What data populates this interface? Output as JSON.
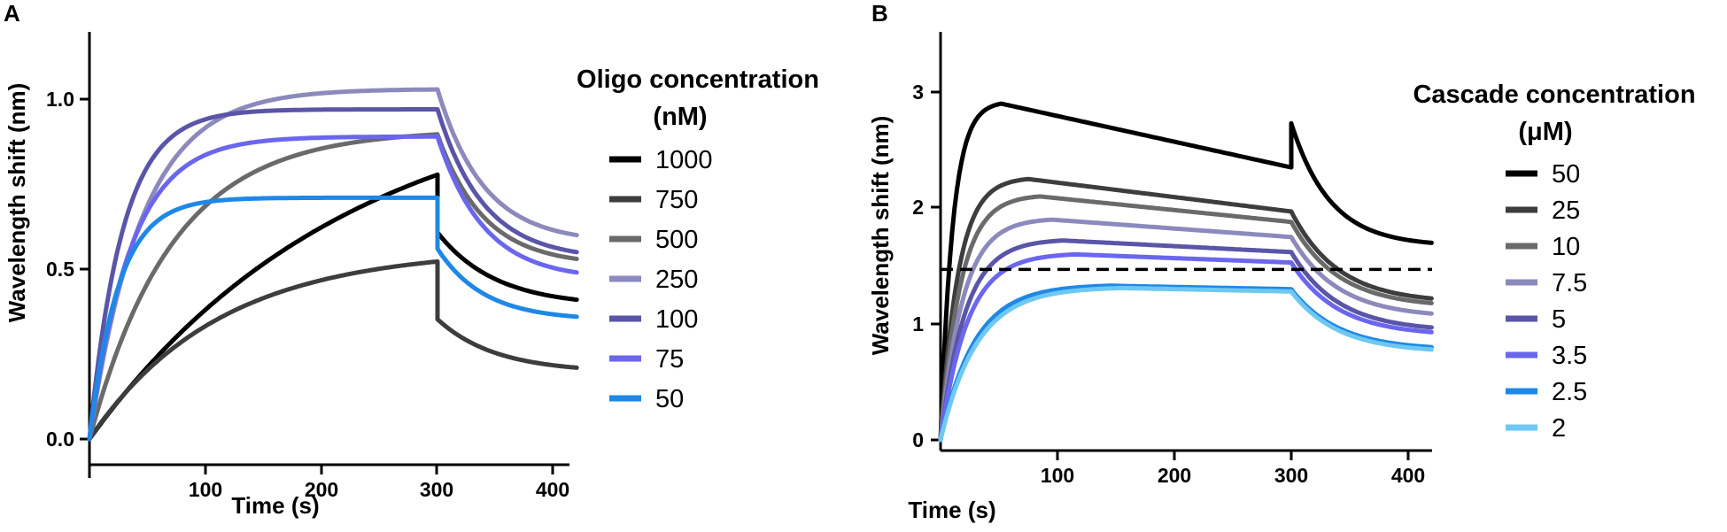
{
  "chart_data": [
    {
      "type": "line",
      "panel_label": "A",
      "xlabel": "Time (s)",
      "ylabel": "Wavelength shift (nm)",
      "xlim": [
        0,
        420
      ],
      "ylim": [
        -0.1,
        1.2
      ],
      "xticks": [
        100,
        200,
        300,
        400
      ],
      "xtick_labels": [
        "100",
        "200",
        "300",
        "400"
      ],
      "yticks": [
        0.0,
        0.5,
        1.0
      ],
      "ytick_labels": [
        "0.0",
        "0.5",
        "1.0"
      ],
      "grid": false,
      "legend_title": [
        "Oligo concentration",
        "(nM)"
      ],
      "legend_position": "right",
      "series": [
        {
          "name": "1000",
          "color": "#000000",
          "assoc_plateau": 1.05,
          "assoc_rate": 0.0045,
          "dissoc_end": 0.41,
          "dissoc_rate": 0.02,
          "dissoc_jump": 0.17
        },
        {
          "name": "750",
          "color": "#3d3d3d",
          "assoc_plateau": 0.56,
          "assoc_rate": 0.009,
          "dissoc_end": 0.21,
          "dissoc_rate": 0.02,
          "dissoc_jump": 0.17
        },
        {
          "name": "500",
          "color": "#6a6a6a",
          "assoc_plateau": 0.91,
          "assoc_rate": 0.014,
          "dissoc_end": 0.53,
          "dissoc_rate": 0.025,
          "dissoc_jump": 0.0
        },
        {
          "name": "250",
          "color": "#8c89bd",
          "assoc_plateau": 1.03,
          "assoc_rate": 0.022,
          "dissoc_end": 0.6,
          "dissoc_rate": 0.025,
          "dissoc_jump": 0.0
        },
        {
          "name": "100",
          "color": "#5a55a8",
          "assoc_plateau": 0.97,
          "assoc_rate": 0.035,
          "dissoc_end": 0.55,
          "dissoc_rate": 0.025,
          "dissoc_jump": 0.0
        },
        {
          "name": "75",
          "color": "#6a66ee",
          "assoc_plateau": 0.89,
          "assoc_rate": 0.028,
          "dissoc_end": 0.49,
          "dissoc_rate": 0.025,
          "dissoc_jump": 0.0
        },
        {
          "name": "50",
          "color": "#1f88e6",
          "assoc_plateau": 0.71,
          "assoc_rate": 0.04,
          "dissoc_end": 0.36,
          "dissoc_rate": 0.025,
          "dissoc_jump": 0.15
        }
      ]
    },
    {
      "type": "line",
      "panel_label": "B",
      "xlabel": "Time (s)",
      "ylabel": "Wavelength shift (nm)",
      "xlim": [
        0,
        420
      ],
      "ylim": [
        0,
        3.5
      ],
      "xticks": [
        100,
        200,
        300,
        400
      ],
      "xtick_labels": [
        "100",
        "200",
        "300",
        "400"
      ],
      "yticks": [
        0,
        1,
        2,
        3
      ],
      "ytick_labels": [
        "0",
        "1",
        "2",
        "3"
      ],
      "grid": false,
      "reference_line": {
        "y": 1.47,
        "style": "dashed"
      },
      "legend_title": [
        "Cascade concentration",
        "(μM)"
      ],
      "legend_position": "right",
      "series": [
        {
          "name": "50",
          "color": "#000000",
          "peak_value": 2.9,
          "peak_time": 52,
          "end_value": 2.35,
          "dissoc_end": 1.7,
          "dissoc_rate": 0.03,
          "spike": 0.38
        },
        {
          "name": "25",
          "color": "#3d3d3d",
          "peak_value": 2.25,
          "peak_time": 75,
          "end_value": 1.97,
          "dissoc_end": 1.22,
          "dissoc_rate": 0.025,
          "spike": 0.0
        },
        {
          "name": "10",
          "color": "#6a6a6a",
          "peak_value": 2.1,
          "peak_time": 85,
          "end_value": 1.88,
          "dissoc_end": 1.18,
          "dissoc_rate": 0.025,
          "spike": 0.0
        },
        {
          "name": "7.5",
          "color": "#8c89bd",
          "peak_value": 1.9,
          "peak_time": 95,
          "end_value": 1.75,
          "dissoc_end": 1.09,
          "dissoc_rate": 0.025,
          "spike": 0.0
        },
        {
          "name": "5",
          "color": "#5a55a8",
          "peak_value": 1.72,
          "peak_time": 105,
          "end_value": 1.62,
          "dissoc_end": 0.97,
          "dissoc_rate": 0.025,
          "spike": 0.0
        },
        {
          "name": "3.5",
          "color": "#6a66ee",
          "peak_value": 1.6,
          "peak_time": 115,
          "end_value": 1.53,
          "dissoc_end": 0.93,
          "dissoc_rate": 0.025,
          "spike": 0.0
        },
        {
          "name": "2.5",
          "color": "#1f88e6",
          "peak_value": 1.33,
          "peak_time": 145,
          "end_value": 1.3,
          "dissoc_end": 0.8,
          "dissoc_rate": 0.025,
          "spike": 0.0
        },
        {
          "name": "2",
          "color": "#6ec8f2",
          "peak_value": 1.31,
          "peak_time": 155,
          "end_value": 1.28,
          "dissoc_end": 0.78,
          "dissoc_rate": 0.025,
          "spike": 0.0
        }
      ]
    }
  ]
}
